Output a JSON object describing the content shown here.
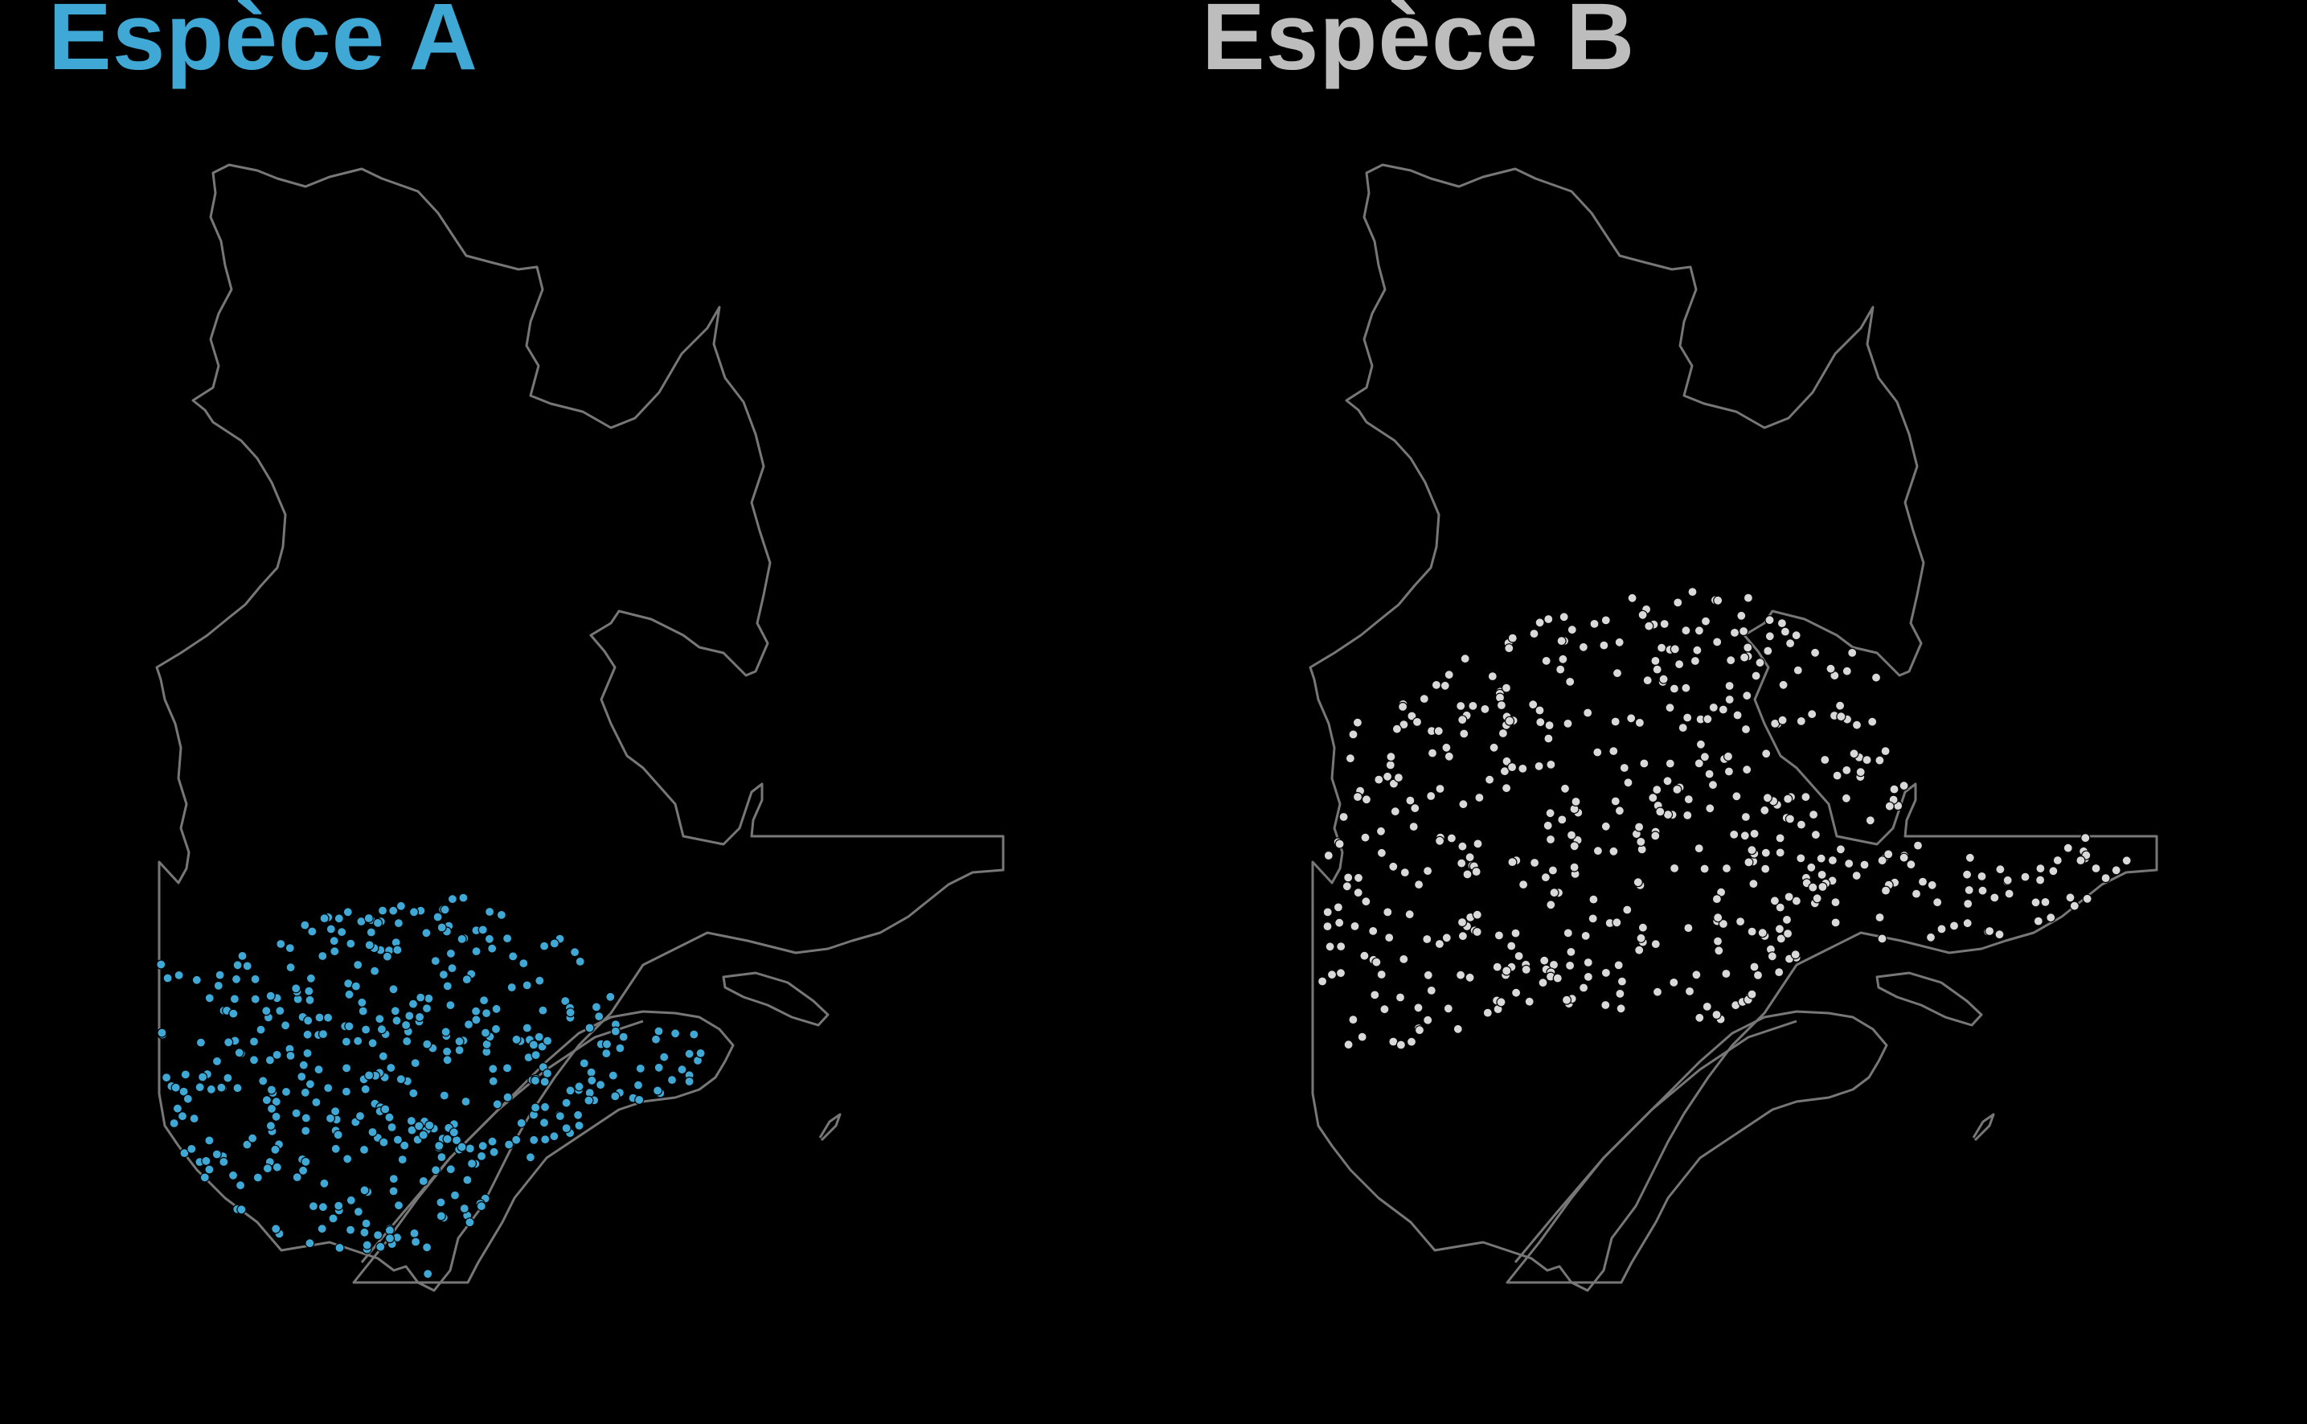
{
  "colors": {
    "background": "#000000",
    "outline": "#777777",
    "species_a": "#3fa8d5",
    "species_b": "#bdbdbd",
    "points_b": "#d9d9d9"
  },
  "panels": [
    {
      "title": "Espèce A",
      "color": "#3fa8d5",
      "point_color": "#3fa8d5",
      "region": "south",
      "point_count": 440,
      "seed": 11
    },
    {
      "title": "Espèce B",
      "color": "#bdbdbd",
      "point_color": "#d9d9d9",
      "region": "central",
      "point_count": 520,
      "seed": 29
    }
  ]
}
